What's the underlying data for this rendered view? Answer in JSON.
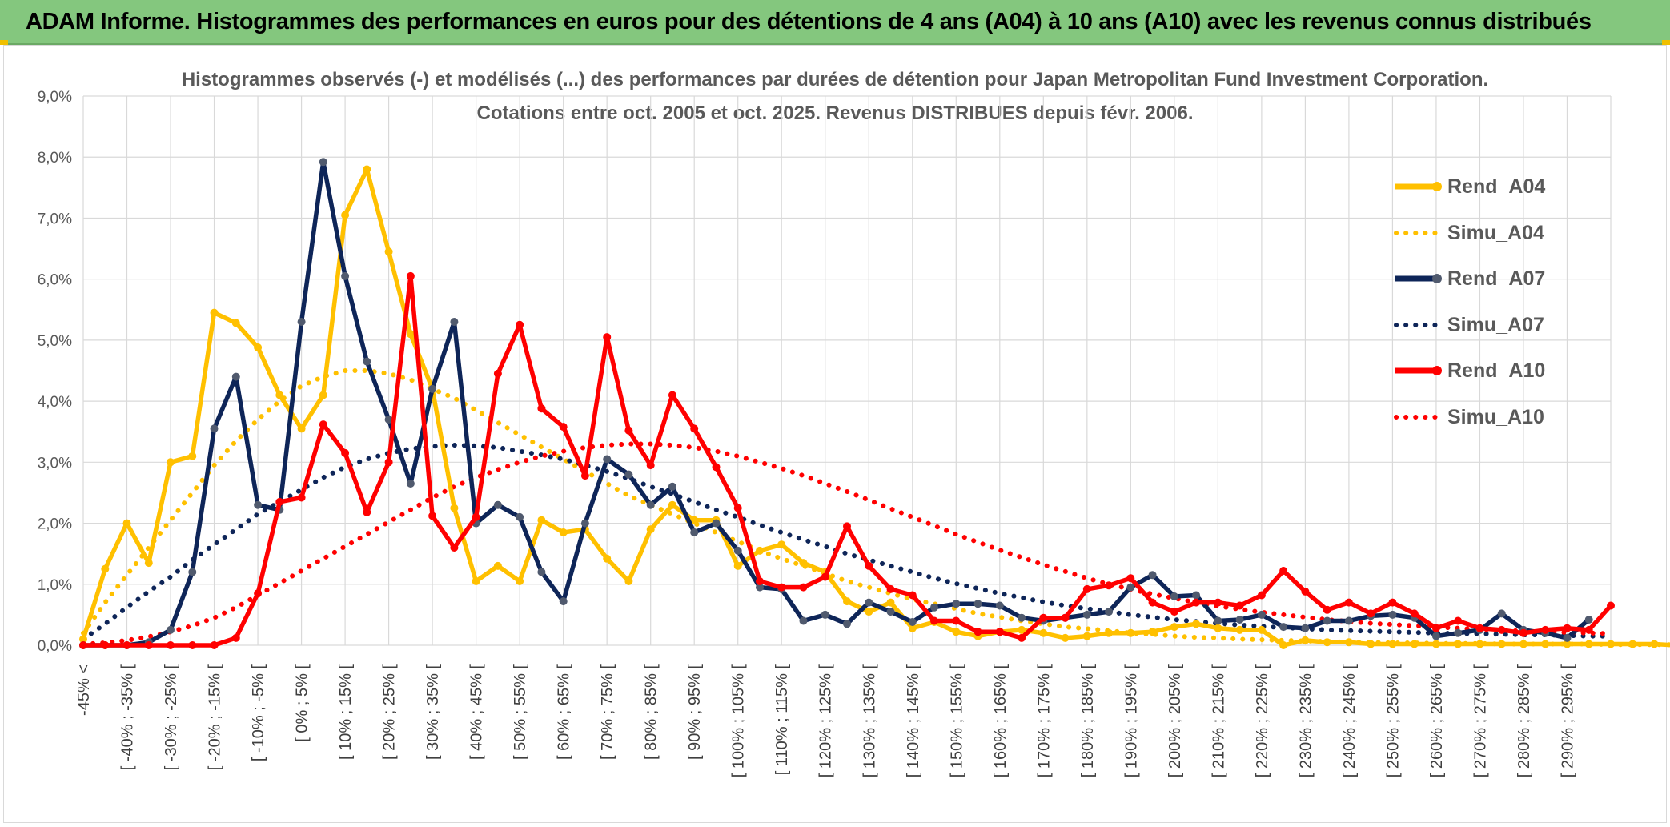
{
  "header": {
    "title": "ADAM Informe. Histogrammes des performances en euros pour des détentions de 4 ans (A04) à 10 ans (A10) avec les revenus connus distribués"
  },
  "chart_data": {
    "type": "line",
    "title_lines": [
      "Histogrammes observés (-) et modélisés (...) des performances par durées de détention pour Japan Metropolitan Fund Investment Corporation.",
      "Cotations entre oct. 2005 et oct. 2025. Revenus DISTRIBUES depuis févr. 2006."
    ],
    "ylim": [
      0,
      9
    ],
    "yticks": [
      "0,0%",
      "1,0%",
      "2,0%",
      "3,0%",
      "4,0%",
      "5,0%",
      "6,0%",
      "7,0%",
      "8,0%",
      "9,0%"
    ],
    "grid": true,
    "legend_position": "right",
    "category_labels": [
      "-45% <",
      "[ -40% ; -35% [",
      "[ -30% ; -25% [",
      "[ -20% ; -15% [",
      "[ -10% ; -5% [",
      "[ 0% ; 5% [",
      "[ 10% ; 15% [",
      "[ 20% ; 25% [",
      "[ 30% ; 35% [",
      "[ 40% ; 45% [",
      "[ 50% ; 55% [",
      "[ 60% ; 65% [",
      "[ 70% ; 75% [",
      "[ 80% ; 85% [",
      "[ 90% ; 95% [",
      "[ 100% ; 105% [",
      "[ 110% ; 115% [",
      "[ 120% ; 125% [",
      "[ 130% ; 135% [",
      "[ 140% ; 145% [",
      "[ 150% ; 155% [",
      "[ 160% ; 165% [",
      "[ 170% ; 175% [",
      "[ 180% ; 185% [",
      "[ 190% ; 195% [",
      "[ 200% ; 205% [",
      "[ 210% ; 215% [",
      "[ 220% ; 225% [",
      "[ 230% ; 235% [",
      "[ 240% ; 245% [",
      "[ 250% ; 255% [",
      "[ 260% ; 265% [",
      "[ 270% ; 275% [",
      "[ 280% ; 285% [",
      "[ 290% ; 295% ["
    ],
    "series": [
      {
        "name": "Rend_A04",
        "style": "solid",
        "color": "#ffc000",
        "marker_color": "#ffc000",
        "values": [
          0.1,
          1.25,
          2.0,
          1.35,
          3.0,
          3.1,
          5.45,
          5.28,
          4.88,
          4.1,
          3.55,
          4.1,
          7.05,
          7.8,
          6.45,
          5.1,
          4.2,
          2.25,
          1.05,
          1.3,
          1.05,
          2.05,
          1.85,
          1.9,
          1.42,
          1.05,
          1.9,
          2.3,
          2.05,
          2.05,
          1.3,
          1.55,
          1.65,
          1.35,
          1.2,
          0.72,
          0.55,
          0.7,
          0.28,
          0.38,
          0.22,
          0.15,
          0.22,
          0.25,
          0.2,
          0.12,
          0.15,
          0.2,
          0.2,
          0.22,
          0.3,
          0.35,
          0.28,
          0.25,
          0.25,
          0.0,
          0.08,
          0.05,
          0.05,
          0.02,
          0.02,
          0.02,
          0.02,
          0.02,
          0.02,
          0.02,
          0.02,
          0.02,
          0.02,
          0.02,
          0.02,
          0.02,
          0.02,
          0.0
        ]
      },
      {
        "name": "Simu_A04",
        "style": "dotted",
        "color": "#ffc000",
        "values": [
          0.2,
          0.7,
          1.15,
          1.6,
          2.05,
          2.5,
          2.95,
          3.35,
          3.7,
          4.0,
          4.25,
          4.4,
          4.5,
          4.5,
          4.45,
          4.35,
          4.2,
          4.05,
          3.85,
          3.65,
          3.45,
          3.25,
          3.05,
          2.85,
          2.65,
          2.45,
          2.3,
          2.15,
          2.0,
          1.85,
          1.7,
          1.55,
          1.42,
          1.3,
          1.18,
          1.05,
          0.95,
          0.85,
          0.75,
          0.68,
          0.6,
          0.52,
          0.46,
          0.4,
          0.35,
          0.3,
          0.27,
          0.24,
          0.2,
          0.18,
          0.15,
          0.13,
          0.12,
          0.1,
          0.09,
          0.08,
          0.07,
          0.06,
          0.05,
          0.05,
          0.04,
          0.04,
          0.03,
          0.03,
          0.03,
          0.02,
          0.02,
          0.02,
          0.02,
          0.02,
          0.01,
          0.01,
          0.01,
          0.01
        ]
      },
      {
        "name": "Rend_A07",
        "style": "solid",
        "color": "#0e2558",
        "marker_color": "#505a6e",
        "values": [
          0.0,
          0.0,
          0.0,
          0.05,
          0.25,
          1.2,
          3.55,
          4.4,
          2.3,
          2.22,
          5.3,
          7.92,
          6.05,
          4.65,
          3.7,
          2.65,
          4.2,
          5.3,
          2.0,
          2.3,
          2.1,
          1.2,
          0.72,
          2.0,
          3.05,
          2.8,
          2.3,
          2.6,
          1.85,
          2.0,
          1.55,
          0.95,
          0.92,
          0.4,
          0.5,
          0.35,
          0.7,
          0.55,
          0.38,
          0.62,
          0.68,
          0.68,
          0.65,
          0.45,
          0.4,
          0.45,
          0.5,
          0.55,
          0.95,
          1.15,
          0.8,
          0.82,
          0.4,
          0.42,
          0.5,
          0.3,
          0.28,
          0.4,
          0.4,
          0.48,
          0.5,
          0.45,
          0.15,
          0.2,
          0.25,
          0.52,
          0.25,
          0.2,
          0.12,
          0.42
        ]
      },
      {
        "name": "Simu_A07",
        "style": "dotted",
        "color": "#0e2558",
        "values": [
          0.1,
          0.35,
          0.62,
          0.88,
          1.12,
          1.4,
          1.65,
          1.9,
          2.15,
          2.35,
          2.55,
          2.75,
          2.92,
          3.05,
          3.15,
          3.22,
          3.26,
          3.28,
          3.27,
          3.24,
          3.18,
          3.12,
          3.05,
          2.95,
          2.85,
          2.73,
          2.6,
          2.48,
          2.35,
          2.22,
          2.1,
          1.97,
          1.85,
          1.73,
          1.62,
          1.5,
          1.4,
          1.3,
          1.2,
          1.1,
          1.01,
          0.93,
          0.85,
          0.78,
          0.71,
          0.65,
          0.6,
          0.55,
          0.5,
          0.46,
          0.42,
          0.39,
          0.36,
          0.33,
          0.31,
          0.29,
          0.27,
          0.25,
          0.24,
          0.23,
          0.22,
          0.21,
          0.2,
          0.19,
          0.19,
          0.18,
          0.17,
          0.17,
          0.16,
          0.15,
          0.15
        ]
      },
      {
        "name": "Rend_A10",
        "style": "solid",
        "color": "#ff0000",
        "marker_color": "#ff0000",
        "values": [
          0.0,
          0.0,
          0.0,
          0.0,
          0.0,
          0.0,
          0.0,
          0.12,
          0.85,
          2.35,
          2.42,
          3.62,
          3.15,
          2.18,
          3.0,
          6.05,
          2.12,
          1.6,
          2.1,
          4.45,
          5.25,
          3.88,
          3.58,
          2.78,
          5.05,
          3.52,
          2.95,
          4.1,
          3.55,
          2.92,
          2.25,
          1.05,
          0.95,
          0.95,
          1.12,
          1.95,
          1.3,
          0.92,
          0.82,
          0.4,
          0.4,
          0.22,
          0.22,
          0.12,
          0.45,
          0.45,
          0.92,
          0.98,
          1.1,
          0.7,
          0.55,
          0.7,
          0.7,
          0.65,
          0.82,
          1.22,
          0.88,
          0.58,
          0.7,
          0.52,
          0.7,
          0.52,
          0.28,
          0.4,
          0.28,
          0.25,
          0.2,
          0.25,
          0.28,
          0.25,
          0.65
        ]
      },
      {
        "name": "Simu_A10",
        "style": "dotted",
        "color": "#ff0000",
        "values": [
          0.02,
          0.04,
          0.08,
          0.14,
          0.22,
          0.32,
          0.45,
          0.62,
          0.82,
          1.02,
          1.22,
          1.42,
          1.62,
          1.82,
          2.02,
          2.22,
          2.42,
          2.6,
          2.75,
          2.88,
          3.0,
          3.1,
          3.18,
          3.24,
          3.28,
          3.3,
          3.3,
          3.28,
          3.24,
          3.18,
          3.1,
          3.0,
          2.9,
          2.78,
          2.65,
          2.52,
          2.38,
          2.24,
          2.1,
          1.96,
          1.82,
          1.69,
          1.56,
          1.44,
          1.32,
          1.21,
          1.1,
          1.0,
          0.92,
          0.84,
          0.77,
          0.7,
          0.64,
          0.59,
          0.54,
          0.5,
          0.46,
          0.42,
          0.39,
          0.36,
          0.34,
          0.32,
          0.3,
          0.28,
          0.26,
          0.25,
          0.23,
          0.22,
          0.21,
          0.2,
          0.19
        ]
      }
    ]
  }
}
